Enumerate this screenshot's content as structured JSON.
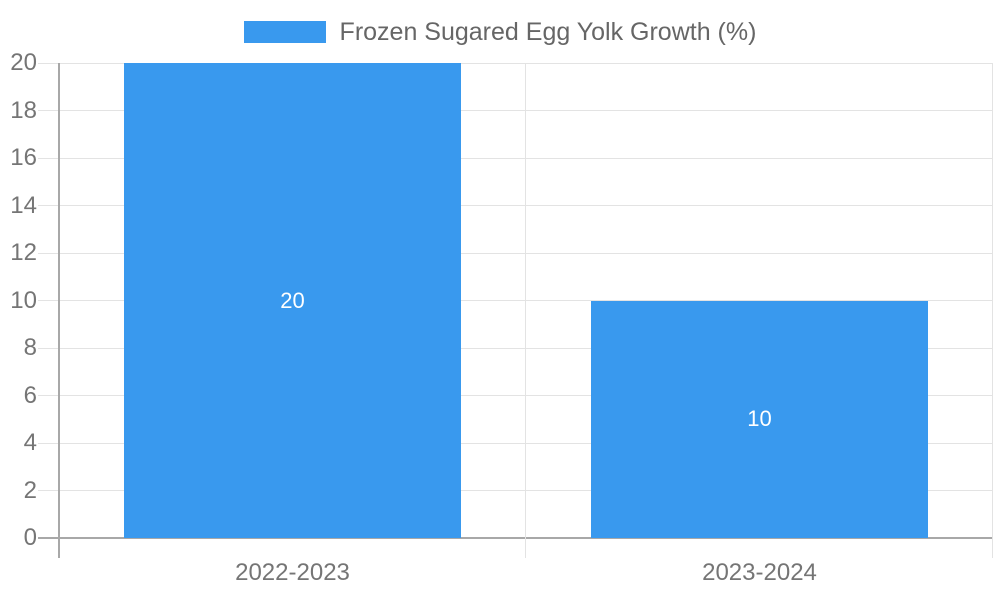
{
  "chart_data": {
    "type": "bar",
    "title": "Frozen Sugared Egg Yolk Growth (%)",
    "legend": [
      "Frozen Sugared Egg Yolk Growth (%)"
    ],
    "legend_position": "top-center",
    "categories": [
      "2022-2023",
      "2023-2024"
    ],
    "values": [
      20,
      10
    ],
    "bar_labels": [
      "20",
      "10"
    ],
    "xlabel": "",
    "ylabel": "",
    "ylim": [
      0,
      20
    ],
    "yticks": [
      0,
      2,
      4,
      6,
      8,
      10,
      12,
      14,
      16,
      18,
      20
    ],
    "grid": true,
    "colors": {
      "bar": "#3999ee",
      "grid_line": "#e3e3e3",
      "axis_line": "#a8a8a8",
      "tick_label": "#757575",
      "legend_text": "#666666",
      "value_label": "#ffffff",
      "background": "#ffffff"
    }
  }
}
